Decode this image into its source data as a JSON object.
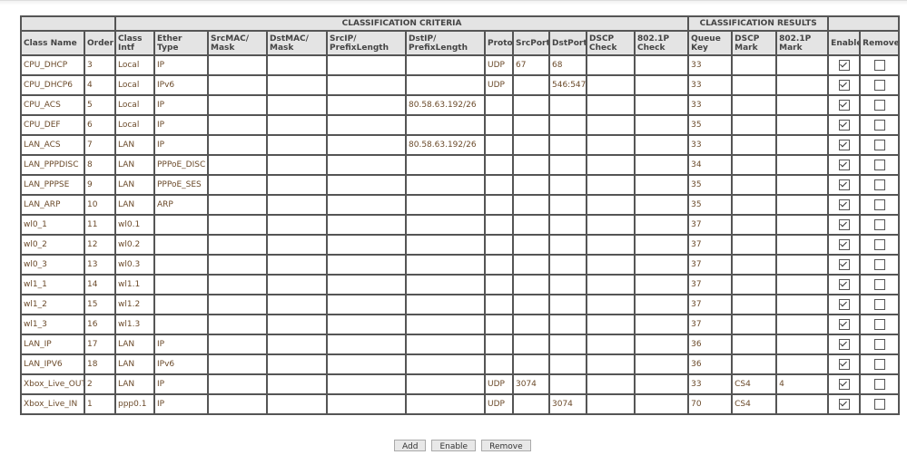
{
  "groups": {
    "criteria": "CLASSIFICATION CRITERIA",
    "results": "CLASSIFICATION RESULTS"
  },
  "columns": [
    "Class Name",
    "Order",
    "Class Intf",
    "Ether Type",
    "SrcMAC/ Mask",
    "DstMAC/ Mask",
    "SrcIP/ PrefixLength",
    "DstIP/ PrefixLength",
    "Proto",
    "SrcPort",
    "DstPort",
    "DSCP Check",
    "802.1P Check",
    "Queue Key",
    "DSCP Mark",
    "802.1P Mark",
    "Enable",
    "Remove"
  ],
  "rows": [
    {
      "cells": [
        "CPU_DHCP",
        "3",
        "Local",
        "IP",
        "",
        "",
        "",
        "",
        "UDP",
        "67",
        "68",
        "",
        "",
        "33",
        "",
        ""
      ],
      "enable": true,
      "remove": false
    },
    {
      "cells": [
        "CPU_DHCP6",
        "4",
        "Local",
        "IPv6",
        "",
        "",
        "",
        "",
        "UDP",
        "",
        "546:547",
        "",
        "",
        "33",
        "",
        ""
      ],
      "enable": true,
      "remove": false
    },
    {
      "cells": [
        "CPU_ACS",
        "5",
        "Local",
        "IP",
        "",
        "",
        "",
        "80.58.63.192/26",
        "",
        "",
        "",
        "",
        "",
        "33",
        "",
        ""
      ],
      "enable": true,
      "remove": false
    },
    {
      "cells": [
        "CPU_DEF",
        "6",
        "Local",
        "IP",
        "",
        "",
        "",
        "",
        "",
        "",
        "",
        "",
        "",
        "35",
        "",
        ""
      ],
      "enable": true,
      "remove": false
    },
    {
      "cells": [
        "LAN_ACS",
        "7",
        "LAN",
        "IP",
        "",
        "",
        "",
        "80.58.63.192/26",
        "",
        "",
        "",
        "",
        "",
        "33",
        "",
        ""
      ],
      "enable": true,
      "remove": false
    },
    {
      "cells": [
        "LAN_PPPDISC",
        "8",
        "LAN",
        "PPPoE_DISC",
        "",
        "",
        "",
        "",
        "",
        "",
        "",
        "",
        "",
        "34",
        "",
        ""
      ],
      "enable": true,
      "remove": false
    },
    {
      "cells": [
        "LAN_PPPSE",
        "9",
        "LAN",
        "PPPoE_SES",
        "",
        "",
        "",
        "",
        "",
        "",
        "",
        "",
        "",
        "35",
        "",
        ""
      ],
      "enable": true,
      "remove": false
    },
    {
      "cells": [
        "LAN_ARP",
        "10",
        "LAN",
        "ARP",
        "",
        "",
        "",
        "",
        "",
        "",
        "",
        "",
        "",
        "35",
        "",
        ""
      ],
      "enable": true,
      "remove": false
    },
    {
      "cells": [
        "wl0_1",
        "11",
        "wl0.1",
        "",
        "",
        "",
        "",
        "",
        "",
        "",
        "",
        "",
        "",
        "37",
        "",
        ""
      ],
      "enable": true,
      "remove": false
    },
    {
      "cells": [
        "wl0_2",
        "12",
        "wl0.2",
        "",
        "",
        "",
        "",
        "",
        "",
        "",
        "",
        "",
        "",
        "37",
        "",
        ""
      ],
      "enable": true,
      "remove": false
    },
    {
      "cells": [
        "wl0_3",
        "13",
        "wl0.3",
        "",
        "",
        "",
        "",
        "",
        "",
        "",
        "",
        "",
        "",
        "37",
        "",
        ""
      ],
      "enable": true,
      "remove": false
    },
    {
      "cells": [
        "wl1_1",
        "14",
        "wl1.1",
        "",
        "",
        "",
        "",
        "",
        "",
        "",
        "",
        "",
        "",
        "37",
        "",
        ""
      ],
      "enable": true,
      "remove": false
    },
    {
      "cells": [
        "wl1_2",
        "15",
        "wl1.2",
        "",
        "",
        "",
        "",
        "",
        "",
        "",
        "",
        "",
        "",
        "37",
        "",
        ""
      ],
      "enable": true,
      "remove": false
    },
    {
      "cells": [
        "wl1_3",
        "16",
        "wl1.3",
        "",
        "",
        "",
        "",
        "",
        "",
        "",
        "",
        "",
        "",
        "37",
        "",
        ""
      ],
      "enable": true,
      "remove": false
    },
    {
      "cells": [
        "LAN_IP",
        "17",
        "LAN",
        "IP",
        "",
        "",
        "",
        "",
        "",
        "",
        "",
        "",
        "",
        "36",
        "",
        ""
      ],
      "enable": true,
      "remove": false
    },
    {
      "cells": [
        "LAN_IPV6",
        "18",
        "LAN",
        "IPv6",
        "",
        "",
        "",
        "",
        "",
        "",
        "",
        "",
        "",
        "36",
        "",
        ""
      ],
      "enable": true,
      "remove": false
    },
    {
      "cells": [
        "Xbox_Live_OUT",
        "2",
        "LAN",
        "IP",
        "",
        "",
        "",
        "",
        "UDP",
        "3074",
        "",
        "",
        "",
        "33",
        "CS4",
        "4"
      ],
      "enable": true,
      "remove": false
    },
    {
      "cells": [
        "Xbox_Live_IN",
        "1",
        "ppp0.1",
        "IP",
        "",
        "",
        "",
        "",
        "UDP",
        "",
        "3074",
        "",
        "",
        "70",
        "CS4",
        ""
      ],
      "enable": true,
      "remove": false
    }
  ],
  "buttons": {
    "add": "Add",
    "enable": "Enable",
    "remove": "Remove"
  }
}
